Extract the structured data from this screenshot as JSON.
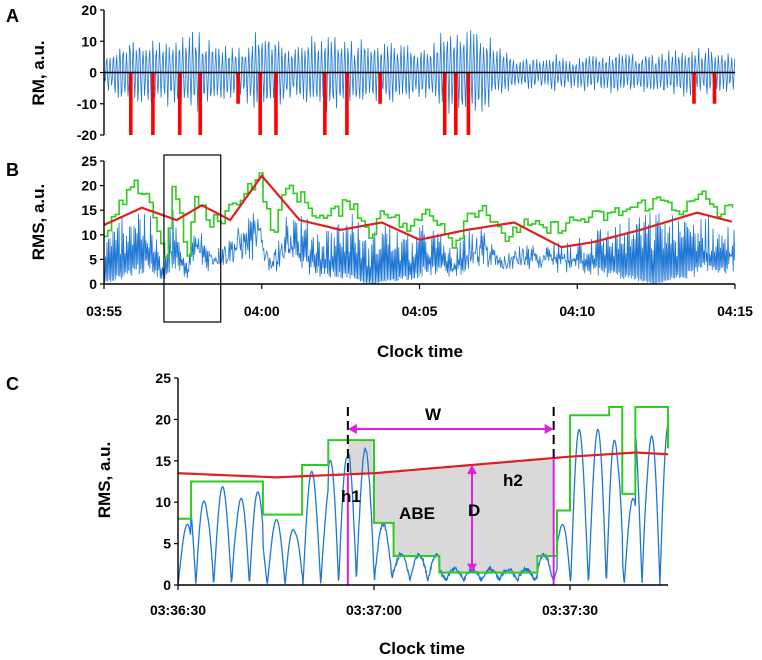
{
  "panels": {
    "a": "A",
    "b": "B",
    "c": "C"
  },
  "colors": {
    "rm_signal": "#1f77d4",
    "rms_signal": "#1f77d4",
    "envelope": "#2ecc1f",
    "baseline": "#e02020",
    "events": "#ff0000",
    "markers": "#e020e0",
    "abe_fill": "#d9d9d9"
  },
  "chart_data": [
    {
      "panel": "A",
      "type": "line",
      "ylabel": "RM, a.u.",
      "ylim": [
        -20,
        20
      ],
      "yticks": [
        "20",
        "10",
        "0",
        "-10",
        "-20"
      ],
      "xlim_minutes": [
        0,
        20
      ],
      "series": [
        {
          "name": "RM signal",
          "type": "oscillation"
        }
      ],
      "events": {
        "name": "detected events",
        "x_minutes": [
          0.85,
          1.55,
          2.4,
          3.05,
          4.25,
          4.95,
          5.45,
          7.0,
          7.7,
          8.75,
          10.8,
          11.15,
          11.55,
          18.7,
          19.35
        ],
        "depth": [
          -20,
          -20,
          -20,
          -20,
          -10,
          -20,
          -20,
          -20,
          -20,
          -10,
          -20,
          -20,
          -20,
          -10,
          -10
        ]
      }
    },
    {
      "panel": "B",
      "type": "line",
      "ylabel": "RMS, a.u.",
      "xlabel": "Clock time",
      "ylim": [
        0,
        25
      ],
      "yticks": [
        "25",
        "20",
        "15",
        "10",
        "5",
        "0"
      ],
      "xlim_minutes": [
        0,
        20
      ],
      "xticks": [
        "03:55",
        "04:00",
        "04:05",
        "04:10",
        "04:15"
      ],
      "series": [
        {
          "name": "RMS",
          "type": "oscillation"
        },
        {
          "name": "upper envelope",
          "type": "step"
        },
        {
          "name": "baseline",
          "x_minutes": [
            0,
            1.2,
            2.3,
            3.1,
            4,
            5,
            6.2,
            7.5,
            8.8,
            10,
            11.5,
            13,
            14.5,
            15.5,
            17,
            18.8,
            20
          ],
          "values": [
            12,
            15.5,
            13,
            16,
            13,
            22,
            13,
            11,
            12.5,
            9,
            11,
            12.5,
            7.5,
            8.5,
            11,
            14.5,
            12.5
          ]
        }
      ],
      "highlight_box_minutes": [
        1.9,
        3.7
      ]
    },
    {
      "panel": "C",
      "type": "line",
      "ylabel": "RMS, a.u.",
      "xlabel": "Clock time",
      "ylim": [
        0,
        25
      ],
      "yticks": [
        "25",
        "20",
        "15",
        "10",
        "5",
        "0"
      ],
      "xlim_seconds": [
        0,
        75
      ],
      "xticks": [
        "03:36:30",
        "03:37:00",
        "03:37:30"
      ],
      "series": [
        {
          "name": "RMS",
          "type": "oscillation"
        },
        {
          "name": "upper envelope",
          "x_seconds": [
            0,
            2,
            13,
            19,
            23,
            28,
            30,
            33,
            40,
            52,
            55,
            58,
            60,
            66,
            68,
            70,
            73,
            75
          ],
          "values": [
            8,
            12.5,
            8.5,
            14.5,
            17.5,
            17.5,
            7.5,
            3.5,
            1.5,
            1.5,
            3.5,
            9,
            20.5,
            21.5,
            11,
            21.5,
            21.5,
            16.5
          ]
        },
        {
          "name": "baseline",
          "x_seconds": [
            0,
            15,
            30,
            45,
            60,
            70,
            75
          ],
          "values": [
            13.5,
            13,
            13.5,
            14.5,
            15.5,
            16,
            15.8
          ]
        }
      ],
      "markers": {
        "event_start_s": 26,
        "event_end_s": 57.5,
        "depth_x_s": 45,
        "depth_range": [
          1.5,
          14.5
        ]
      },
      "annotations": {
        "width": "W",
        "height_left": "h1",
        "height_right": "h2",
        "area": "ABE",
        "depth": "D"
      }
    }
  ]
}
